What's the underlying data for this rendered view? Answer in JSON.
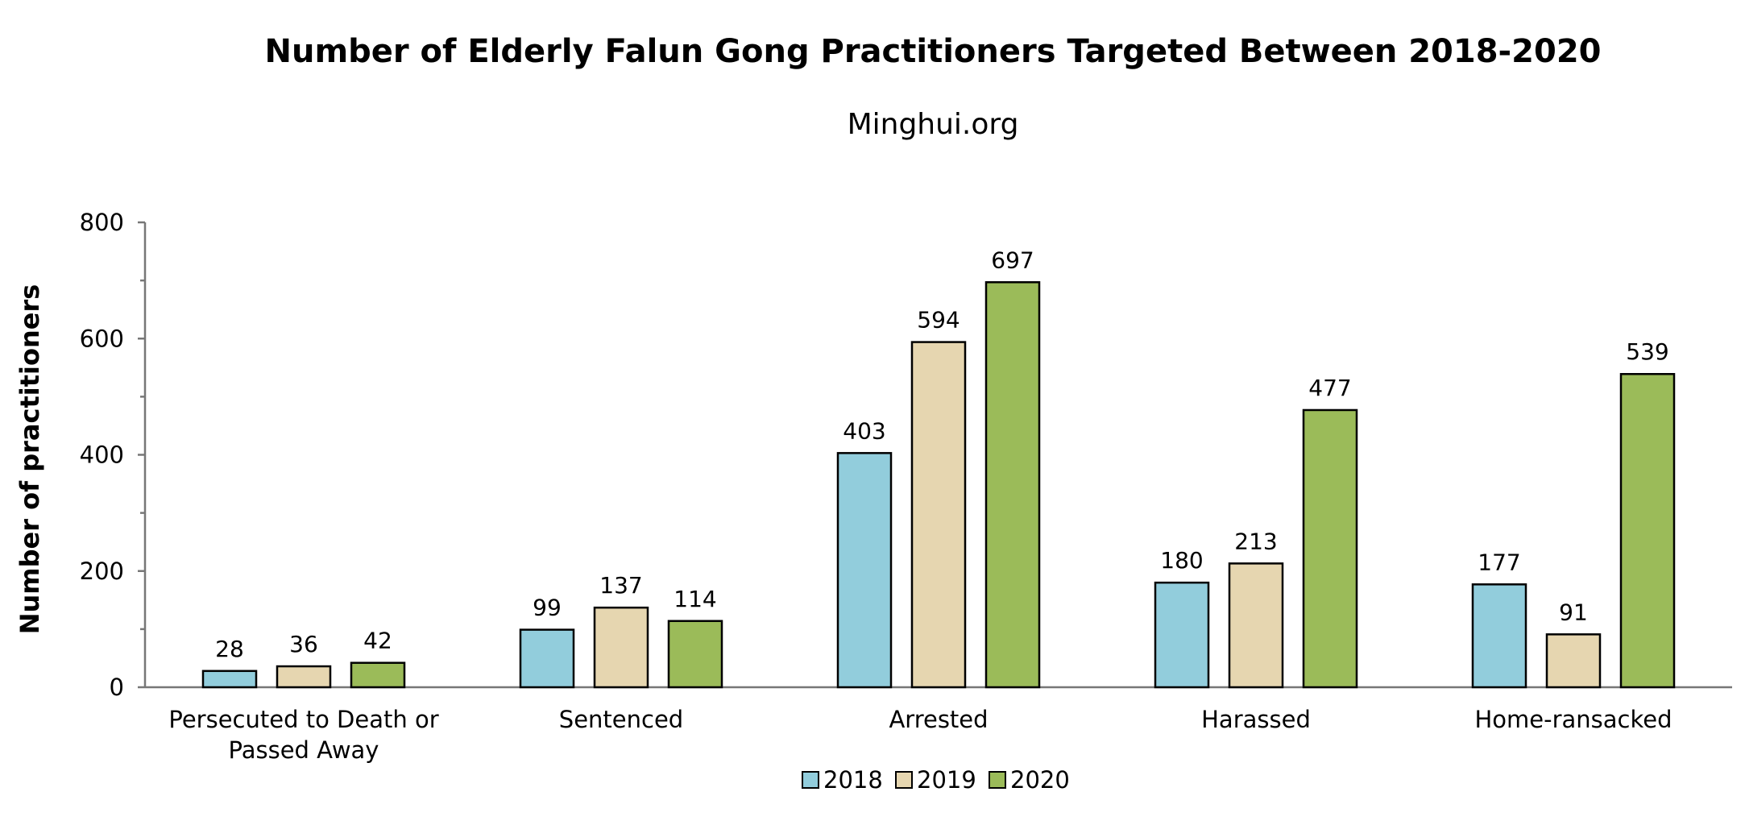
{
  "chart_data": {
    "type": "bar",
    "title": "Number of Elderly Falun Gong Practitioners Targeted Between 2018-2020",
    "subtitle": "Minghui.org",
    "ylabel": "Number of practitioners",
    "xlabel": "",
    "ylim": [
      0,
      800
    ],
    "yticks": [
      "0",
      "200",
      "400",
      "600",
      "800"
    ],
    "categories": [
      [
        "Persecuted to Death or",
        "Passed Away"
      ],
      [
        "Sentenced"
      ],
      [
        "Arrested"
      ],
      [
        "Harassed"
      ],
      [
        "Home-ransacked"
      ]
    ],
    "series": [
      {
        "name": "2018",
        "color": "#92cddc",
        "values": [
          28,
          99,
          403,
          180,
          177
        ]
      },
      {
        "name": "2019",
        "color": "#e6d6b0",
        "values": [
          36,
          137,
          594,
          213,
          91
        ]
      },
      {
        "name": "2020",
        "color": "#9bbb59",
        "values": [
          42,
          114,
          697,
          477,
          539
        ]
      }
    ],
    "legend": "bottom",
    "grid": false,
    "data_labels": true
  }
}
